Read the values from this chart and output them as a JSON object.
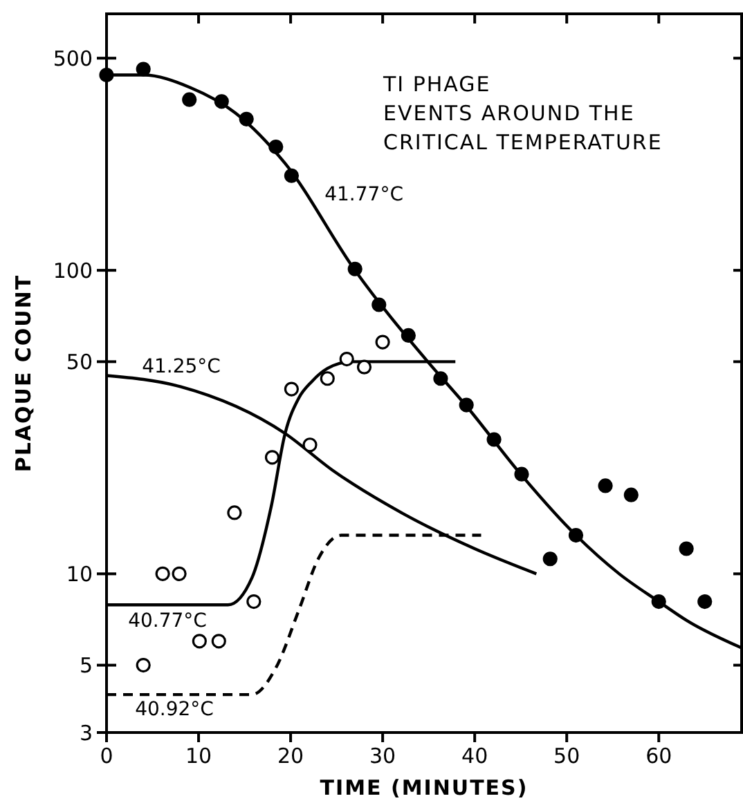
{
  "chart_data": {
    "type": "scatter",
    "title": "TI PHAGE\nEVENTS AROUND THE\nCRITICAL TEMPERATURE",
    "xlabel": "TIME (MINUTES)",
    "ylabel": "PLAQUE COUNT",
    "log": "y",
    "xlim": [
      0,
      69
    ],
    "ylim": [
      3,
      700
    ],
    "xticks": [
      0,
      10,
      20,
      30,
      40,
      50,
      60
    ],
    "yticks": [
      3,
      5,
      10,
      50,
      100,
      500
    ],
    "grid": false,
    "series": [
      {
        "type": "line",
        "name": "41.77°C",
        "color": "#000000",
        "marker": "none",
        "line_style": "solid",
        "x": [
          0,
          4,
          9.1,
          14,
          19.4,
          27,
          34.9,
          39,
          45,
          51,
          55.7,
          60,
          63.1,
          69
        ],
        "values": [
          440,
          440,
          400,
          330,
          225,
          100,
          50,
          36,
          21.3,
          13.4,
          10,
          8.1,
          7,
          5.7
        ]
      },
      {
        "type": "line",
        "name": "41.25°C",
        "color": "#000000",
        "marker": "none",
        "line_style": "solid",
        "x": [
          0,
          8,
          19.4,
          24.5,
          32.2,
          40,
          46.7
        ],
        "values": [
          45,
          41.4,
          29,
          22,
          15.8,
          12.1,
          10
        ]
      },
      {
        "type": "line",
        "name": "40.77°C",
        "color": "#000000",
        "marker": "none",
        "line_style": "solid",
        "x": [
          0,
          13.2,
          15.8,
          17.9,
          19.4,
          20.9,
          22.3,
          24,
          26.6,
          37.9
        ],
        "values": [
          7.9,
          7.9,
          9.7,
          16.7,
          29,
          38,
          43,
          47.5,
          50,
          50
        ]
      },
      {
        "type": "line",
        "name": "40.92°C",
        "color": "#000000",
        "marker": "none",
        "line_style": "dashed",
        "x": [
          0,
          15.8,
          18.4,
          20.9,
          23,
          25.5,
          40.7
        ],
        "values": [
          4,
          4,
          4.9,
          7.6,
          11.2,
          13.4,
          13.4
        ]
      },
      {
        "color": "#000000",
        "marker": "circle",
        "x": [
          0,
          4,
          9,
          12.5,
          15.2,
          18.4,
          20.1,
          27,
          29.6,
          32.8,
          36.3,
          39.1,
          42.1,
          45.1,
          48.2,
          51,
          54.2,
          57,
          60,
          63,
          65
        ],
        "values": [
          440,
          460,
          365,
          360,
          315,
          255,
          205,
          101,
          77,
          61,
          44,
          36,
          27.7,
          21.3,
          11.2,
          13.4,
          19.5,
          18.2,
          8.1,
          12.1,
          8.1
        ]
      },
      {
        "color": "#ffffff",
        "marker": "circle",
        "x": [
          4,
          6.1,
          7.9,
          10.1,
          12.2,
          13.9,
          16,
          18,
          20.1,
          22.1,
          24,
          26.1,
          28,
          30
        ],
        "values": [
          5,
          10,
          10,
          6,
          6,
          15.9,
          8.1,
          24.2,
          40.6,
          26.6,
          44,
          51,
          48,
          58
        ]
      }
    ]
  }
}
